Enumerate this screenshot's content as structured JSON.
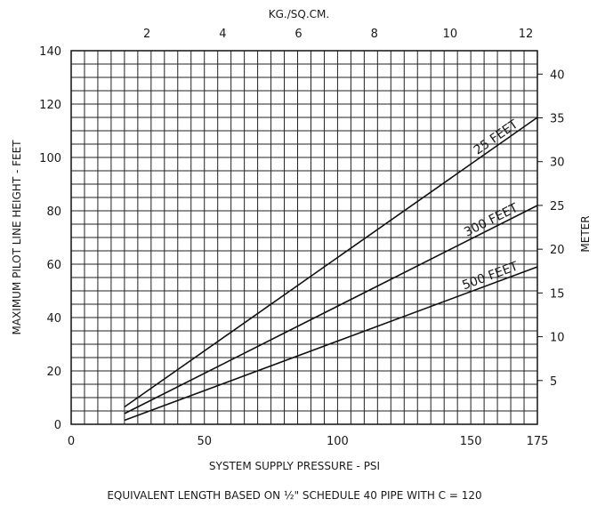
{
  "chart_data": {
    "type": "line",
    "xlabel": "SYSTEM SUPPLY PRESSURE - PSI",
    "ylabel": "MAXIMUM PILOT LINE HEIGHT - FEET",
    "x_top_label": "KG./SQ.CM.",
    "y_right_label": "METER",
    "footnote": "EQUIVALENT LENGTH BASED ON ½\" SCHEDULE 40 PIPE WITH C = 120",
    "xlim": [
      0,
      175
    ],
    "ylim": [
      0,
      140
    ],
    "x_ticks": [
      0,
      50,
      100,
      150,
      175
    ],
    "y_ticks": [
      0,
      20,
      40,
      60,
      80,
      100,
      120,
      140
    ],
    "x_top_ticks": [
      2,
      4,
      6,
      8,
      10,
      12
    ],
    "y_right_ticks": [
      5,
      10,
      15,
      20,
      25,
      30,
      35,
      40
    ],
    "grid": true,
    "series": [
      {
        "name": "25 FEET",
        "x": [
          20,
          175
        ],
        "y": [
          6.5,
          115
        ]
      },
      {
        "name": "300 FEET",
        "x": [
          20,
          175
        ],
        "y": [
          4,
          82
        ]
      },
      {
        "name": "500 FEET",
        "x": [
          20,
          175
        ],
        "y": [
          1.5,
          59
        ]
      }
    ]
  }
}
